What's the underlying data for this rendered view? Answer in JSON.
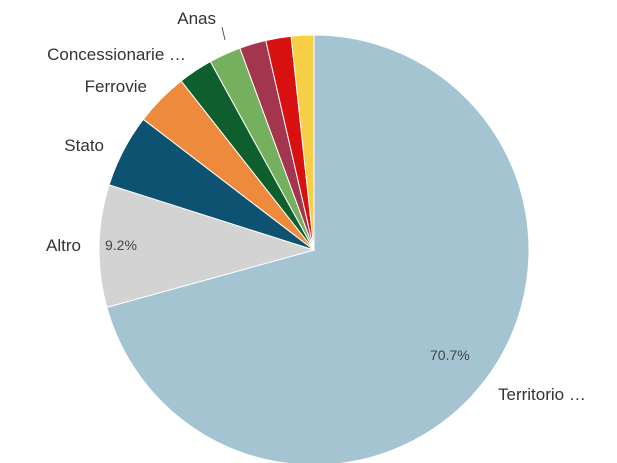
{
  "chart_data": {
    "type": "pie",
    "title": "",
    "slices": [
      {
        "label": "Territorio …",
        "value": 70.7,
        "color": "#a3c4d0",
        "data_label": "70.7%"
      },
      {
        "label": "Altro",
        "value": 9.2,
        "color": "#d3d3d3",
        "data_label": "9.2%"
      },
      {
        "label": "Stato",
        "value": 5.5,
        "color": "#0e5272",
        "data_label": ""
      },
      {
        "label": "Ferrovie",
        "value": 4.0,
        "color": "#ee8a3c",
        "data_label": ""
      },
      {
        "label": "",
        "value": 2.6,
        "color": "#0e5e2e",
        "data_label": ""
      },
      {
        "label": "Concessionarie …",
        "value": 2.4,
        "color": "#75b05e",
        "data_label": ""
      },
      {
        "label": "Anas",
        "value": 2.0,
        "color": "#a3354e",
        "data_label": ""
      },
      {
        "label": "",
        "value": 1.9,
        "color": "#d81010",
        "data_label": ""
      },
      {
        "label": "",
        "value": 1.7,
        "color": "#f7cf45",
        "data_label": ""
      }
    ],
    "legend": "none"
  }
}
